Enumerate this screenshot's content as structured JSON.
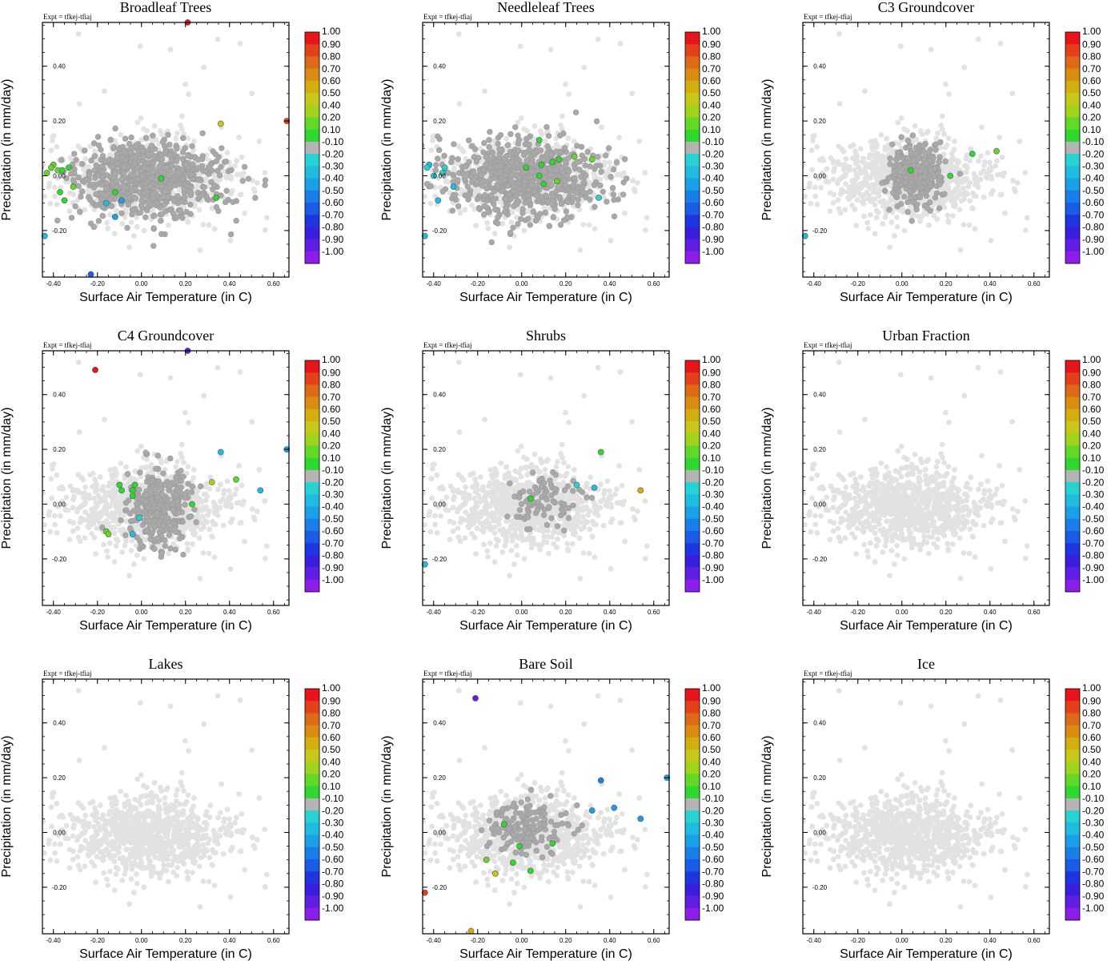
{
  "page": {
    "expt_label": "Expt = tfkej-tfiaj",
    "xlabel": "Surface Air Temperature (in C)",
    "ylabel": "Precipitation (in mm/day)"
  },
  "colors": {
    "background_point": "#e2e2e2",
    "active_point": "#a9a9a9",
    "frame": "#000000"
  },
  "colorbar": {
    "labels": [
      "1.00",
      "0.90",
      "0.80",
      "0.70",
      "0.60",
      "0.50",
      "0.40",
      "0.20",
      "0.10",
      "-0.10",
      "-0.20",
      "-0.30",
      "-0.40",
      "-0.50",
      "-0.60",
      "-0.70",
      "-0.80",
      "-0.90",
      "-1.00"
    ],
    "colors": [
      "#e8141c",
      "#e4401a",
      "#dd6a16",
      "#da8c12",
      "#d2ae10",
      "#c7c81a",
      "#a0d21e",
      "#62d828",
      "#2ed82e",
      "#b4b4b4",
      "#28d2d2",
      "#20bce0",
      "#1aa0e6",
      "#1a7ee8",
      "#1a5ce6",
      "#1e36e0",
      "#3a1ee0",
      "#601ee4",
      "#8c1ee8"
    ]
  },
  "chart_data": [
    {
      "type": "scatter",
      "title": "Broadleaf Trees",
      "xlabel": "Surface Air Temperature (in C)",
      "ylabel": "Precipitation (in mm/day)",
      "xlim": [
        -0.45,
        0.67
      ],
      "ylim": [
        -0.37,
        0.56
      ],
      "xticks": [
        "-0.40",
        "-0.20",
        "0.00",
        "0.20",
        "0.40",
        "0.60"
      ],
      "yticks": [
        "-0.20",
        "0.00",
        "0.20",
        "0.40"
      ],
      "cloud": {
        "x_center": 0.02,
        "y_center": -0.01,
        "x_spread": 0.19,
        "y_spread": 0.075,
        "n_points": 900
      },
      "active_cloud": {
        "x_center": 0.02,
        "y_center": -0.01,
        "x_spread": 0.17,
        "y_spread": 0.07,
        "n_points": 700
      },
      "highlighted_points": [
        {
          "x": 0.21,
          "y": 0.56,
          "value": 1.0
        },
        {
          "x": 0.66,
          "y": 0.2,
          "value": 0.9
        },
        {
          "x": 0.36,
          "y": 0.19,
          "value": 0.5
        },
        {
          "x": -0.4,
          "y": 0.04,
          "value": 0.3
        },
        {
          "x": -0.41,
          "y": 0.03,
          "value": 0.2
        },
        {
          "x": -0.38,
          "y": 0.02,
          "value": 0.2
        },
        {
          "x": -0.33,
          "y": 0.03,
          "value": 0.1
        },
        {
          "x": -0.36,
          "y": 0.02,
          "value": 0.1
        },
        {
          "x": -0.43,
          "y": 0.01,
          "value": 0.3
        },
        {
          "x": 0.09,
          "y": -0.01,
          "value": 0.1
        },
        {
          "x": -0.31,
          "y": -0.04,
          "value": 0.2
        },
        {
          "x": -0.37,
          "y": -0.06,
          "value": 0.1
        },
        {
          "x": -0.35,
          "y": -0.09,
          "value": 0.1
        },
        {
          "x": -0.12,
          "y": -0.06,
          "value": 0.1
        },
        {
          "x": -0.09,
          "y": -0.09,
          "value": -0.4
        },
        {
          "x": -0.16,
          "y": -0.1,
          "value": -0.3
        },
        {
          "x": -0.12,
          "y": -0.15,
          "value": -0.4
        },
        {
          "x": 0.34,
          "y": -0.08,
          "value": 0.1
        },
        {
          "x": -0.44,
          "y": -0.22,
          "value": -0.3
        },
        {
          "x": -0.23,
          "y": -0.36,
          "value": -0.6
        }
      ]
    },
    {
      "type": "scatter",
      "title": "Needleleaf Trees",
      "xlabel": "Surface Air Temperature (in C)",
      "ylabel": "Precipitation (in mm/day)",
      "xlim": [
        -0.45,
        0.67
      ],
      "ylim": [
        -0.37,
        0.56
      ],
      "xticks": [
        "-0.40",
        "-0.20",
        "0.00",
        "0.20",
        "0.40",
        "0.60"
      ],
      "yticks": [
        "-0.20",
        "0.00",
        "0.20",
        "0.40"
      ],
      "cloud": {
        "x_center": 0.02,
        "y_center": -0.01,
        "x_spread": 0.19,
        "y_spread": 0.075,
        "n_points": 900
      },
      "active_cloud": {
        "x_center": 0.02,
        "y_center": -0.01,
        "x_spread": 0.17,
        "y_spread": 0.07,
        "n_points": 700
      },
      "highlighted_points": [
        {
          "x": 0.08,
          "y": 0.13,
          "value": 0.1
        },
        {
          "x": 0.24,
          "y": 0.07,
          "value": 0.3
        },
        {
          "x": 0.17,
          "y": 0.06,
          "value": 0.1
        },
        {
          "x": 0.14,
          "y": 0.05,
          "value": 0.1
        },
        {
          "x": 0.32,
          "y": 0.06,
          "value": 0.3
        },
        {
          "x": 0.02,
          "y": 0.03,
          "value": 0.1
        },
        {
          "x": 0.09,
          "y": 0.04,
          "value": 0.1
        },
        {
          "x": 0.08,
          "y": 0.0,
          "value": 0.1
        },
        {
          "x": 0.16,
          "y": -0.02,
          "value": 0.3
        },
        {
          "x": 0.1,
          "y": -0.03,
          "value": 0.1
        },
        {
          "x": -0.42,
          "y": 0.04,
          "value": -0.3
        },
        {
          "x": -0.43,
          "y": 0.03,
          "value": -0.2
        },
        {
          "x": -0.35,
          "y": 0.03,
          "value": -0.2
        },
        {
          "x": -0.36,
          "y": 0.01,
          "value": -0.2
        },
        {
          "x": -0.4,
          "y": 0.0,
          "value": -0.2
        },
        {
          "x": -0.31,
          "y": -0.04,
          "value": -0.3
        },
        {
          "x": -0.38,
          "y": -0.09,
          "value": -0.3
        },
        {
          "x": 0.35,
          "y": -0.08,
          "value": -0.2
        },
        {
          "x": -0.44,
          "y": -0.22,
          "value": -0.3
        }
      ]
    },
    {
      "type": "scatter",
      "title": "C3 Groundcover",
      "xlabel": "Surface Air Temperature (in C)",
      "ylabel": "Precipitation (in mm/day)",
      "xlim": [
        -0.45,
        0.67
      ],
      "ylim": [
        -0.37,
        0.56
      ],
      "xticks": [
        "-0.40",
        "-0.20",
        "0.00",
        "0.20",
        "0.40",
        "0.60"
      ],
      "yticks": [
        "-0.20",
        "0.00",
        "0.20",
        "0.40"
      ],
      "cloud": {
        "x_center": 0.02,
        "y_center": -0.01,
        "x_spread": 0.19,
        "y_spread": 0.075,
        "n_points": 900
      },
      "active_cloud": {
        "x_center": 0.07,
        "y_center": 0.01,
        "x_spread": 0.06,
        "y_spread": 0.06,
        "n_points": 280
      },
      "highlighted_points": [
        {
          "x": 0.04,
          "y": 0.02,
          "value": 0.1
        },
        {
          "x": 0.22,
          "y": 0.0,
          "value": 0.1
        },
        {
          "x": 0.32,
          "y": 0.08,
          "value": 0.1
        },
        {
          "x": 0.43,
          "y": 0.09,
          "value": 0.2
        },
        {
          "x": -0.44,
          "y": -0.22,
          "value": -0.3
        }
      ]
    },
    {
      "type": "scatter",
      "title": "C4 Groundcover",
      "xlabel": "Surface Air Temperature (in C)",
      "ylabel": "Precipitation (in mm/day)",
      "xlim": [
        -0.45,
        0.67
      ],
      "ylim": [
        -0.37,
        0.56
      ],
      "xticks": [
        "-0.40",
        "-0.20",
        "0.00",
        "0.20",
        "0.40",
        "0.60"
      ],
      "yticks": [
        "-0.20",
        "0.00",
        "0.20",
        "0.40"
      ],
      "cloud": {
        "x_center": 0.02,
        "y_center": -0.01,
        "x_spread": 0.19,
        "y_spread": 0.075,
        "n_points": 900
      },
      "active_cloud": {
        "x_center": 0.08,
        "y_center": -0.02,
        "x_spread": 0.07,
        "y_spread": 0.07,
        "n_points": 320
      },
      "highlighted_points": [
        {
          "x": 0.21,
          "y": 0.56,
          "value": -0.9
        },
        {
          "x": -0.21,
          "y": 0.49,
          "value": 1.0
        },
        {
          "x": 0.66,
          "y": 0.2,
          "value": -0.4
        },
        {
          "x": 0.36,
          "y": 0.19,
          "value": -0.3
        },
        {
          "x": 0.43,
          "y": 0.09,
          "value": 0.2
        },
        {
          "x": 0.32,
          "y": 0.08,
          "value": 0.4
        },
        {
          "x": 0.54,
          "y": 0.05,
          "value": -0.3
        },
        {
          "x": -0.1,
          "y": 0.07,
          "value": 0.1
        },
        {
          "x": -0.09,
          "y": 0.05,
          "value": 0.1
        },
        {
          "x": -0.03,
          "y": 0.07,
          "value": 0.1
        },
        {
          "x": -0.04,
          "y": 0.05,
          "value": 0.1
        },
        {
          "x": -0.04,
          "y": 0.03,
          "value": 0.1
        },
        {
          "x": 0.23,
          "y": 0.0,
          "value": 0.1
        },
        {
          "x": -0.01,
          "y": -0.05,
          "value": -0.2
        },
        {
          "x": -0.04,
          "y": -0.11,
          "value": -0.3
        },
        {
          "x": -0.16,
          "y": -0.1,
          "value": 0.3
        },
        {
          "x": -0.15,
          "y": -0.11,
          "value": 0.2
        }
      ]
    },
    {
      "type": "scatter",
      "title": "Shrubs",
      "xlabel": "Surface Air Temperature (in C)",
      "ylabel": "Precipitation (in mm/day)",
      "xlim": [
        -0.45,
        0.67
      ],
      "ylim": [
        -0.37,
        0.56
      ],
      "xticks": [
        "-0.40",
        "-0.20",
        "0.00",
        "0.20",
        "0.40",
        "0.60"
      ],
      "yticks": [
        "-0.20",
        "0.00",
        "0.20",
        "0.40"
      ],
      "cloud": {
        "x_center": 0.02,
        "y_center": -0.01,
        "x_spread": 0.19,
        "y_spread": 0.075,
        "n_points": 900
      },
      "active_cloud": {
        "x_center": 0.1,
        "y_center": 0.01,
        "x_spread": 0.09,
        "y_spread": 0.05,
        "n_points": 90
      },
      "highlighted_points": [
        {
          "x": 0.36,
          "y": 0.19,
          "value": 0.1
        },
        {
          "x": 0.25,
          "y": 0.07,
          "value": -0.2
        },
        {
          "x": 0.33,
          "y": 0.06,
          "value": -0.3
        },
        {
          "x": 0.54,
          "y": 0.05,
          "value": 0.6
        },
        {
          "x": 0.04,
          "y": 0.02,
          "value": 0.1
        },
        {
          "x": -0.44,
          "y": -0.22,
          "value": -0.3
        }
      ]
    },
    {
      "type": "scatter",
      "title": "Urban Fraction",
      "xlabel": "Surface Air Temperature (in C)",
      "ylabel": "Precipitation (in mm/day)",
      "xlim": [
        -0.45,
        0.67
      ],
      "ylim": [
        -0.37,
        0.56
      ],
      "xticks": [
        "-0.40",
        "-0.20",
        "0.00",
        "0.20",
        "0.40",
        "0.60"
      ],
      "yticks": [
        "-0.20",
        "0.00",
        "0.20",
        "0.40"
      ],
      "cloud": {
        "x_center": 0.02,
        "y_center": -0.01,
        "x_spread": 0.19,
        "y_spread": 0.075,
        "n_points": 900
      },
      "active_cloud": {
        "x_center": 0.0,
        "y_center": 0.0,
        "x_spread": 0.0,
        "y_spread": 0.0,
        "n_points": 0
      },
      "highlighted_points": []
    },
    {
      "type": "scatter",
      "title": "Lakes",
      "xlabel": "Surface Air Temperature (in C)",
      "ylabel": "Precipitation (in mm/day)",
      "xlim": [
        -0.45,
        0.67
      ],
      "ylim": [
        -0.37,
        0.56
      ],
      "xticks": [
        "-0.40",
        "-0.20",
        "0.00",
        "0.20",
        "0.40",
        "0.60"
      ],
      "yticks": [
        "-0.20",
        "0.00",
        "0.20",
        "0.40"
      ],
      "cloud": {
        "x_center": 0.02,
        "y_center": -0.01,
        "x_spread": 0.19,
        "y_spread": 0.075,
        "n_points": 900
      },
      "active_cloud": {
        "x_center": 0.0,
        "y_center": 0.0,
        "x_spread": 0.0,
        "y_spread": 0.0,
        "n_points": 0
      },
      "highlighted_points": []
    },
    {
      "type": "scatter",
      "title": "Bare Soil",
      "xlabel": "Surface Air Temperature (in C)",
      "ylabel": "Precipitation (in mm/day)",
      "xlim": [
        -0.45,
        0.67
      ],
      "ylim": [
        -0.37,
        0.56
      ],
      "xticks": [
        "-0.40",
        "-0.20",
        "0.00",
        "0.20",
        "0.40",
        "0.60"
      ],
      "yticks": [
        "-0.20",
        "0.00",
        "0.20",
        "0.40"
      ],
      "cloud": {
        "x_center": 0.02,
        "y_center": -0.01,
        "x_spread": 0.19,
        "y_spread": 0.075,
        "n_points": 900
      },
      "active_cloud": {
        "x_center": 0.02,
        "y_center": 0.02,
        "x_spread": 0.09,
        "y_spread": 0.05,
        "n_points": 160
      },
      "highlighted_points": [
        {
          "x": -0.21,
          "y": 0.49,
          "value": -0.9
        },
        {
          "x": 0.66,
          "y": 0.2,
          "value": -0.4
        },
        {
          "x": 0.36,
          "y": 0.19,
          "value": -0.5
        },
        {
          "x": 0.42,
          "y": 0.09,
          "value": -0.4
        },
        {
          "x": 0.32,
          "y": 0.08,
          "value": -0.4
        },
        {
          "x": 0.54,
          "y": 0.05,
          "value": -0.4
        },
        {
          "x": -0.08,
          "y": 0.03,
          "value": 0.1
        },
        {
          "x": 0.14,
          "y": -0.04,
          "value": 0.1
        },
        {
          "x": -0.01,
          "y": -0.05,
          "value": 0.1
        },
        {
          "x": -0.16,
          "y": -0.1,
          "value": 0.2
        },
        {
          "x": -0.04,
          "y": -0.11,
          "value": 0.1
        },
        {
          "x": -0.12,
          "y": -0.15,
          "value": 0.5
        },
        {
          "x": 0.04,
          "y": -0.14,
          "value": 0.1
        },
        {
          "x": -0.44,
          "y": -0.22,
          "value": 0.9
        },
        {
          "x": -0.23,
          "y": -0.36,
          "value": 0.6
        }
      ]
    },
    {
      "type": "scatter",
      "title": "Ice",
      "xlabel": "Surface Air Temperature (in C)",
      "ylabel": "Precipitation (in mm/day)",
      "xlim": [
        -0.45,
        0.67
      ],
      "ylim": [
        -0.37,
        0.56
      ],
      "xticks": [
        "-0.40",
        "-0.20",
        "0.00",
        "0.20",
        "0.40",
        "0.60"
      ],
      "yticks": [
        "-0.20",
        "0.00",
        "0.20",
        "0.40"
      ],
      "cloud": {
        "x_center": 0.02,
        "y_center": -0.01,
        "x_spread": 0.19,
        "y_spread": 0.075,
        "n_points": 900
      },
      "active_cloud": {
        "x_center": 0.0,
        "y_center": 0.0,
        "x_spread": 0.0,
        "y_spread": 0.0,
        "n_points": 0
      },
      "highlighted_points": []
    }
  ]
}
